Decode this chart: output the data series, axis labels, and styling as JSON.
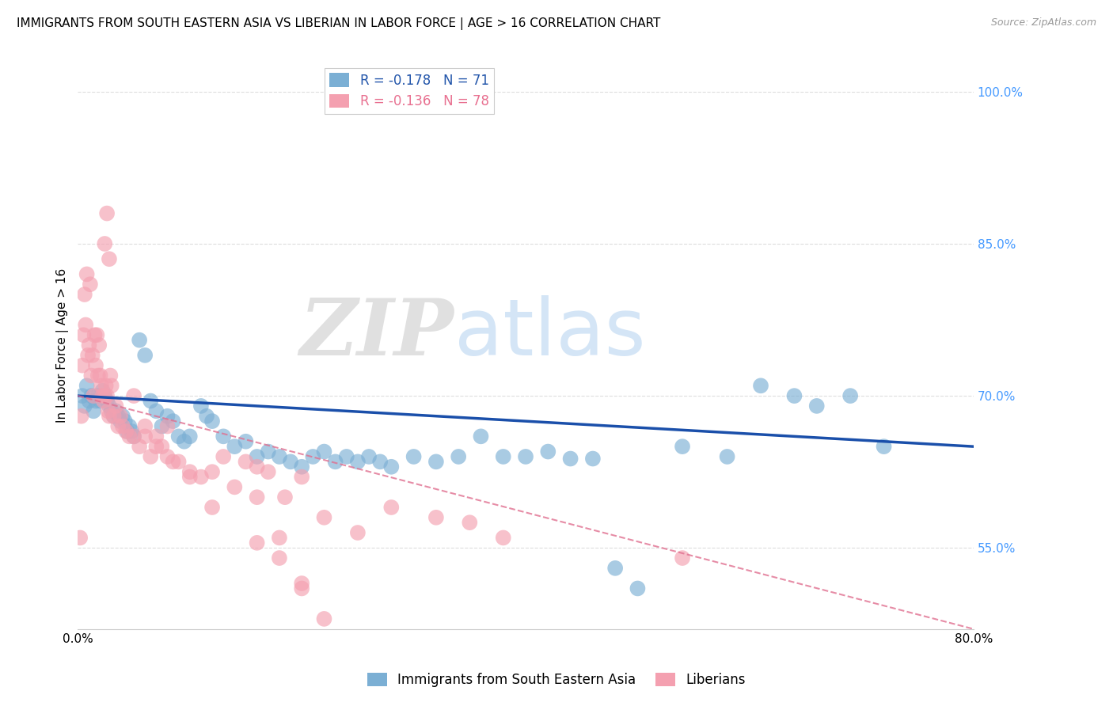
{
  "title": "IMMIGRANTS FROM SOUTH EASTERN ASIA VS LIBERIAN IN LABOR FORCE | AGE > 16 CORRELATION CHART",
  "source": "Source: ZipAtlas.com",
  "ylabel": "In Labor Force | Age > 16",
  "xlim": [
    0.0,
    0.8
  ],
  "ylim": [
    0.47,
    1.03
  ],
  "xticks": [
    0.0,
    0.1,
    0.2,
    0.3,
    0.4,
    0.5,
    0.6,
    0.7,
    0.8
  ],
  "xticklabels": [
    "0.0%",
    "",
    "",
    "",
    "",
    "",
    "",
    "",
    "80.0%"
  ],
  "yticks_right": [
    0.55,
    0.7,
    0.85,
    1.0
  ],
  "yticklabels_right": [
    "55.0%",
    "70.0%",
    "85.0%",
    "100.0%"
  ],
  "blue_R": -0.178,
  "blue_N": 71,
  "pink_R": -0.136,
  "pink_N": 78,
  "legend_label_blue": "Immigrants from South Eastern Asia",
  "legend_label_pink": "Liberians",
  "background_color": "#ffffff",
  "grid_color": "#dddddd",
  "blue_color": "#7bafd4",
  "pink_color": "#f4a0b0",
  "blue_line_color": "#1a4faa",
  "pink_line_color": "#e07090",
  "watermark_zip": "ZIP",
  "watermark_atlas": "atlas",
  "blue_x": [
    0.004,
    0.006,
    0.008,
    0.01,
    0.012,
    0.014,
    0.016,
    0.018,
    0.02,
    0.022,
    0.024,
    0.026,
    0.028,
    0.03,
    0.032,
    0.034,
    0.036,
    0.038,
    0.04,
    0.042,
    0.044,
    0.046,
    0.048,
    0.05,
    0.055,
    0.06,
    0.065,
    0.07,
    0.075,
    0.08,
    0.085,
    0.09,
    0.095,
    0.1,
    0.11,
    0.115,
    0.12,
    0.13,
    0.14,
    0.15,
    0.16,
    0.17,
    0.18,
    0.19,
    0.2,
    0.21,
    0.22,
    0.23,
    0.24,
    0.25,
    0.26,
    0.27,
    0.28,
    0.3,
    0.32,
    0.34,
    0.36,
    0.38,
    0.4,
    0.42,
    0.44,
    0.46,
    0.48,
    0.5,
    0.54,
    0.58,
    0.61,
    0.64,
    0.66,
    0.69,
    0.72
  ],
  "blue_y": [
    0.7,
    0.69,
    0.71,
    0.695,
    0.7,
    0.685,
    0.695,
    0.7,
    0.695,
    0.705,
    0.7,
    0.695,
    0.69,
    0.685,
    0.68,
    0.685,
    0.68,
    0.675,
    0.68,
    0.675,
    0.665,
    0.67,
    0.665,
    0.66,
    0.755,
    0.74,
    0.695,
    0.685,
    0.67,
    0.68,
    0.675,
    0.66,
    0.655,
    0.66,
    0.69,
    0.68,
    0.675,
    0.66,
    0.65,
    0.655,
    0.64,
    0.645,
    0.64,
    0.635,
    0.63,
    0.64,
    0.645,
    0.635,
    0.64,
    0.635,
    0.64,
    0.635,
    0.63,
    0.64,
    0.635,
    0.64,
    0.66,
    0.64,
    0.64,
    0.645,
    0.638,
    0.638,
    0.53,
    0.51,
    0.65,
    0.64,
    0.71,
    0.7,
    0.69,
    0.7,
    0.65
  ],
  "pink_x": [
    0.002,
    0.003,
    0.004,
    0.005,
    0.006,
    0.007,
    0.008,
    0.009,
    0.01,
    0.011,
    0.012,
    0.013,
    0.014,
    0.015,
    0.016,
    0.017,
    0.018,
    0.019,
    0.02,
    0.021,
    0.022,
    0.023,
    0.024,
    0.025,
    0.026,
    0.027,
    0.028,
    0.029,
    0.03,
    0.032,
    0.034,
    0.036,
    0.038,
    0.04,
    0.043,
    0.046,
    0.05,
    0.055,
    0.06,
    0.065,
    0.07,
    0.075,
    0.08,
    0.085,
    0.09,
    0.1,
    0.11,
    0.12,
    0.13,
    0.15,
    0.16,
    0.17,
    0.185,
    0.2,
    0.22,
    0.25,
    0.28,
    0.32,
    0.35,
    0.38,
    0.2,
    0.18,
    0.16,
    0.14,
    0.12,
    0.1,
    0.16,
    0.18,
    0.2,
    0.22,
    0.024,
    0.026,
    0.028,
    0.54,
    0.05,
    0.06,
    0.07,
    0.08
  ],
  "pink_y": [
    0.56,
    0.68,
    0.73,
    0.76,
    0.8,
    0.77,
    0.82,
    0.74,
    0.75,
    0.81,
    0.72,
    0.74,
    0.7,
    0.76,
    0.73,
    0.76,
    0.72,
    0.75,
    0.72,
    0.71,
    0.7,
    0.695,
    0.7,
    0.71,
    0.7,
    0.685,
    0.68,
    0.72,
    0.71,
    0.68,
    0.69,
    0.67,
    0.68,
    0.67,
    0.665,
    0.66,
    0.66,
    0.65,
    0.66,
    0.64,
    0.65,
    0.65,
    0.64,
    0.635,
    0.635,
    0.625,
    0.62,
    0.625,
    0.64,
    0.635,
    0.63,
    0.625,
    0.6,
    0.62,
    0.58,
    0.565,
    0.59,
    0.58,
    0.575,
    0.56,
    0.515,
    0.56,
    0.6,
    0.61,
    0.59,
    0.62,
    0.555,
    0.54,
    0.51,
    0.48,
    0.85,
    0.88,
    0.835,
    0.54,
    0.7,
    0.67,
    0.66,
    0.67
  ]
}
